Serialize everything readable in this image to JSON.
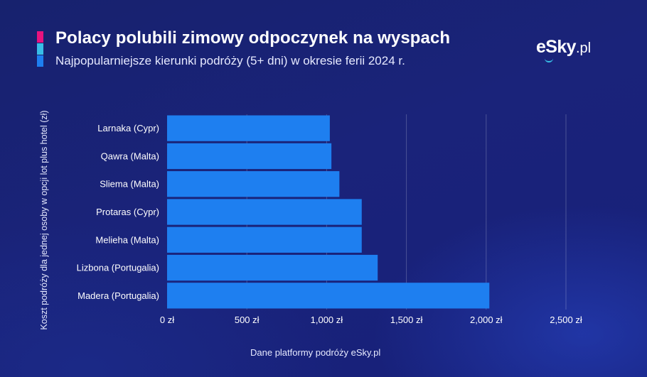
{
  "header": {
    "title": "Polacy polubili zimowy odpoczynek na wyspach",
    "subtitle": "Najpopularniejsze kierunki podróży (5+ dni) w okresie ferii 2024 r."
  },
  "brand": {
    "logo_main": "eSky",
    "logo_domain": ".pl"
  },
  "footer": {
    "source": "Dane platformy podróży eSky.pl"
  },
  "colors": {
    "bar": "#1e7ff0",
    "accent_pink": "#e8137e",
    "accent_cyan": "#38bde6",
    "accent_blue": "#1e7ff0"
  },
  "chart_data": {
    "type": "bar",
    "orientation": "horizontal",
    "title": "Polacy polubili zimowy odpoczynek na wyspach",
    "ylabel": "Koszt podróży dla jednej osoby w opcji lot plus hotel (zł)",
    "xlabel": "",
    "categories": [
      "Larnaka (Cypr)",
      "Qawra (Malta)",
      "Sliema (Malta)",
      "Protaras (Cypr)",
      "Melieha (Malta)",
      "Lizbona (Portugalia)",
      "Madera (Portugalia)"
    ],
    "values": [
      1020,
      1030,
      1080,
      1220,
      1220,
      1320,
      2020
    ],
    "xlim": [
      0,
      2500
    ],
    "ticks": [
      0,
      500,
      1000,
      1500,
      2000,
      2500
    ],
    "tick_labels": [
      "0 zł",
      "500 zł",
      "1,000 zł",
      "1,500 zł",
      "2,000 zł",
      "2,500 zł"
    ],
    "grid": true,
    "legend": "none"
  }
}
